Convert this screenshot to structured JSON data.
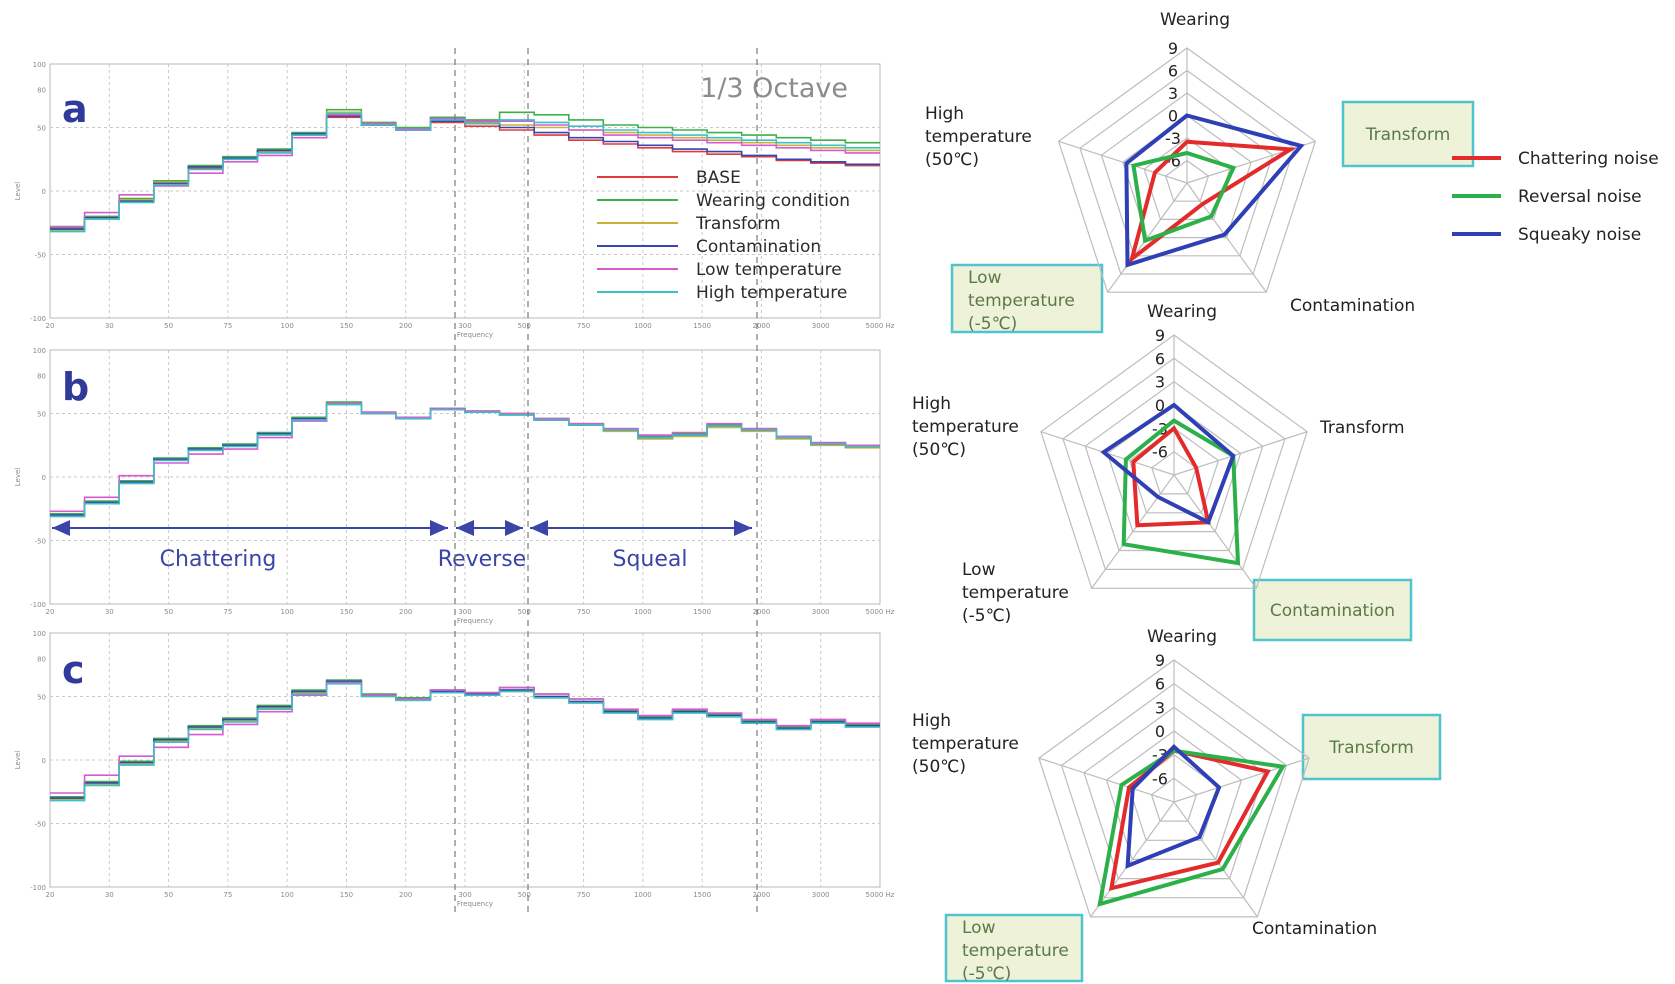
{
  "chart_data": [
    {
      "id": "a",
      "type": "line",
      "panel_label": "a",
      "annotation": "1/3 Octave",
      "x": [
        "20",
        "30",
        "40",
        "50",
        "63",
        "80",
        "100",
        "125",
        "160",
        "200",
        "250",
        "315",
        "400",
        "500",
        "630",
        "800",
        "1000",
        "1250",
        "1600",
        "2000",
        "2500",
        "3150",
        "4000",
        "5000"
      ],
      "x_tick_labels": [
        "20",
        "30",
        "50",
        "75",
        "100",
        "150",
        "200",
        "300",
        "500",
        "750",
        "1000",
        "1500",
        "2000",
        "3000",
        "5000 Hz"
      ],
      "xlabel": "Frequency",
      "ylabel": "Level",
      "y_tick_labels": [
        "100",
        "80",
        "50",
        "0",
        "-50",
        "-100"
      ],
      "ylim": [
        -100,
        100
      ],
      "legend": [
        "BASE",
        "Wearing condition",
        "Transform",
        "Contamination",
        "Low temperature",
        "High temperature"
      ],
      "legend_colors": [
        "#e23a3a",
        "#3db04a",
        "#c9b23a",
        "#3a46b0",
        "#d65ad0",
        "#3cc0c8"
      ],
      "series": [
        {
          "name": "BASE",
          "color": "#e23a3a",
          "values": [
            -30,
            -22,
            -8,
            6,
            18,
            26,
            31,
            44,
            58,
            52,
            48,
            54,
            51,
            48,
            44,
            40,
            37,
            34,
            31,
            29,
            27,
            24,
            22,
            20
          ]
        },
        {
          "name": "Wearing condition",
          "color": "#3db04a",
          "values": [
            -29,
            -20,
            -6,
            8,
            20,
            27,
            33,
            46,
            64,
            54,
            50,
            58,
            56,
            62,
            60,
            56,
            52,
            50,
            48,
            46,
            44,
            42,
            40,
            38
          ]
        },
        {
          "name": "Transform",
          "color": "#c9b23a",
          "values": [
            -31,
            -21,
            -7,
            7,
            19,
            26,
            31,
            45,
            62,
            53,
            49,
            56,
            54,
            52,
            50,
            48,
            46,
            44,
            42,
            40,
            38,
            36,
            34,
            32
          ]
        },
        {
          "name": "Contamination",
          "color": "#3a46b0",
          "values": [
            -30,
            -21,
            -8,
            6,
            19,
            26,
            32,
            45,
            59,
            52,
            48,
            55,
            53,
            50,
            46,
            42,
            39,
            36,
            33,
            31,
            28,
            25,
            23,
            21
          ]
        },
        {
          "name": "Low temperature",
          "color": "#d65ad0",
          "values": [
            -28,
            -17,
            -3,
            4,
            14,
            23,
            28,
            42,
            60,
            53,
            49,
            57,
            55,
            55,
            52,
            48,
            44,
            42,
            40,
            38,
            36,
            34,
            32,
            30
          ]
        },
        {
          "name": "High temperature",
          "color": "#3cc0c8",
          "values": [
            -32,
            -22,
            -9,
            5,
            17,
            25,
            30,
            44,
            61,
            52,
            48,
            56,
            53,
            56,
            54,
            51,
            48,
            46,
            44,
            42,
            40,
            38,
            36,
            34
          ]
        }
      ]
    },
    {
      "id": "b",
      "type": "line",
      "panel_label": "b",
      "x": [
        "20",
        "30",
        "40",
        "50",
        "63",
        "80",
        "100",
        "125",
        "160",
        "200",
        "250",
        "315",
        "400",
        "500",
        "630",
        "800",
        "1000",
        "1250",
        "1600",
        "2000",
        "2500",
        "3150",
        "4000",
        "5000"
      ],
      "x_tick_labels": [
        "20",
        "30",
        "50",
        "75",
        "100",
        "150",
        "200",
        "300",
        "500",
        "750",
        "1000",
        "1500",
        "2000",
        "3000",
        "5000 Hz"
      ],
      "xlabel": "Frequency",
      "ylabel": "Level",
      "y_tick_labels": [
        "100",
        "80",
        "50",
        "0",
        "-50",
        "-100"
      ],
      "ylim": [
        -100,
        100
      ],
      "regions": [
        {
          "label": "Chattering",
          "x_from": "20",
          "x_to": "400"
        },
        {
          "label": "Reverse",
          "x_from": "400",
          "x_to": "500"
        },
        {
          "label": "Squeal",
          "x_from": "500",
          "x_to": "2500"
        }
      ],
      "series": [
        {
          "name": "BASE",
          "color": "#e23a3a",
          "values": [
            -30,
            -20,
            -4,
            14,
            22,
            25,
            34,
            46,
            58,
            50,
            46,
            53,
            51,
            49,
            45,
            41,
            37,
            31,
            33,
            40,
            37,
            31,
            26,
            24
          ]
        },
        {
          "name": "Wearing condition",
          "color": "#3db04a",
          "values": [
            -29,
            -19,
            -3,
            15,
            23,
            26,
            35,
            47,
            59,
            51,
            47,
            54,
            52,
            50,
            46,
            42,
            38,
            32,
            34,
            41,
            38,
            32,
            27,
            25
          ]
        },
        {
          "name": "Transform",
          "color": "#c9b23a",
          "values": [
            -31,
            -20,
            -4,
            14,
            21,
            25,
            34,
            46,
            57,
            50,
            46,
            53,
            51,
            49,
            45,
            41,
            36,
            30,
            32,
            39,
            36,
            30,
            25,
            23
          ]
        },
        {
          "name": "Contamination",
          "color": "#3a46b0",
          "values": [
            -30,
            -20,
            -4,
            14,
            22,
            25,
            34,
            46,
            58,
            50,
            46,
            53,
            51,
            49,
            45,
            41,
            37,
            31,
            33,
            40,
            37,
            31,
            26,
            24
          ]
        },
        {
          "name": "Low temperature",
          "color": "#d65ad0",
          "values": [
            -27,
            -16,
            1,
            11,
            18,
            22,
            31,
            44,
            58,
            51,
            47,
            54,
            52,
            50,
            46,
            42,
            38,
            33,
            35,
            42,
            38,
            32,
            27,
            25
          ]
        },
        {
          "name": "High temperature",
          "color": "#3cc0c8",
          "values": [
            -31,
            -21,
            -5,
            13,
            21,
            24,
            33,
            45,
            57,
            50,
            46,
            53,
            51,
            49,
            45,
            41,
            37,
            31,
            33,
            40,
            37,
            31,
            26,
            24
          ]
        }
      ]
    },
    {
      "id": "c",
      "type": "line",
      "panel_label": "c",
      "x": [
        "20",
        "30",
        "40",
        "50",
        "63",
        "80",
        "100",
        "125",
        "160",
        "200",
        "250",
        "315",
        "400",
        "500",
        "630",
        "800",
        "1000",
        "1250",
        "1600",
        "2000",
        "2500",
        "3150",
        "4000",
        "5000"
      ],
      "x_tick_labels": [
        "20",
        "30",
        "50",
        "75",
        "100",
        "150",
        "200",
        "300",
        "500",
        "750",
        "1000",
        "1500",
        "2000",
        "3000",
        "5000 Hz"
      ],
      "xlabel": "Frequency",
      "ylabel": "Level",
      "y_tick_labels": [
        "100",
        "80",
        "50",
        "0",
        "-50",
        "-100"
      ],
      "ylim": [
        -100,
        100
      ],
      "series": [
        {
          "name": "BASE",
          "color": "#e23a3a",
          "values": [
            -30,
            -18,
            -2,
            16,
            26,
            32,
            42,
            54,
            62,
            51,
            48,
            54,
            52,
            55,
            50,
            46,
            38,
            33,
            38,
            35,
            30,
            25,
            30,
            27
          ]
        },
        {
          "name": "Wearing condition",
          "color": "#3db04a",
          "values": [
            -29,
            -17,
            -1,
            17,
            27,
            33,
            43,
            55,
            63,
            52,
            49,
            55,
            53,
            57,
            52,
            48,
            39,
            34,
            39,
            36,
            31,
            26,
            31,
            28
          ]
        },
        {
          "name": "Transform",
          "color": "#c9b23a",
          "values": [
            -31,
            -19,
            -3,
            15,
            25,
            31,
            41,
            53,
            61,
            50,
            47,
            53,
            51,
            54,
            49,
            45,
            37,
            32,
            37,
            34,
            29,
            24,
            29,
            26
          ]
        },
        {
          "name": "Contamination",
          "color": "#3a46b0",
          "values": [
            -30,
            -18,
            -2,
            16,
            26,
            32,
            42,
            54,
            62,
            51,
            48,
            54,
            52,
            55,
            50,
            46,
            38,
            33,
            38,
            35,
            30,
            25,
            30,
            27
          ]
        },
        {
          "name": "Low temperature",
          "color": "#d65ad0",
          "values": [
            -26,
            -12,
            3,
            10,
            20,
            28,
            38,
            51,
            61,
            51,
            48,
            55,
            53,
            57,
            52,
            48,
            40,
            35,
            40,
            37,
            32,
            27,
            32,
            29
          ]
        },
        {
          "name": "High temperature",
          "color": "#3cc0c8",
          "values": [
            -32,
            -20,
            -4,
            14,
            24,
            30,
            40,
            52,
            60,
            50,
            47,
            53,
            51,
            54,
            49,
            45,
            37,
            32,
            37,
            34,
            29,
            24,
            29,
            26
          ]
        }
      ]
    },
    {
      "id": "radar-a",
      "type": "radar",
      "axes": [
        "Wearing",
        "Transform",
        "Contamination",
        "Low temperature (-5℃)",
        "High temperature (50℃)"
      ],
      "axis_labels": [
        [
          "Wearing"
        ],
        [
          "Transform"
        ],
        [
          "Contamination"
        ],
        [
          "Low",
          "temperature",
          "(-5℃)"
        ],
        [
          "High",
          "temperature",
          "(50℃)"
        ]
      ],
      "highlighted_axes": [
        1,
        3
      ],
      "r_ticks": [
        "9",
        "6",
        "3",
        "0",
        "-3",
        "-6"
      ],
      "rlim": [
        -9,
        9
      ],
      "series": [
        {
          "name": "Chattering noise",
          "color": "#e32b2b",
          "values": [
            -3.5,
            5.5,
            -5.5,
            3.5,
            -4.5
          ]
        },
        {
          "name": "Reversal noise",
          "color": "#2db04a",
          "values": [
            -5,
            -2.5,
            -3.5,
            0.5,
            -1.5
          ]
        },
        {
          "name": "Squeaky noise",
          "color": "#2f3fb4",
          "values": [
            0,
            7,
            -0.5,
            4.5,
            -0.5
          ]
        }
      ]
    },
    {
      "id": "radar-b",
      "type": "radar",
      "axes": [
        "Wearing",
        "Transform",
        "Contamination",
        "Low temperature (-5℃)",
        "High temperature (50℃)"
      ],
      "axis_labels": [
        [
          "Wearing"
        ],
        [
          "Transform"
        ],
        [
          "Contamination"
        ],
        [
          "Low",
          "temperature",
          "(-5℃)"
        ],
        [
          "High",
          "temperature",
          "(50℃)"
        ]
      ],
      "highlighted_axes": [
        2
      ],
      "r_ticks": [
        "9",
        "6",
        "3",
        "0",
        "-3",
        "-6"
      ],
      "rlim": [
        -9,
        9
      ],
      "series": [
        {
          "name": "Chattering noise",
          "color": "#e32b2b",
          "values": [
            -3,
            -6,
            -1.5,
            -1,
            -3.5
          ]
        },
        {
          "name": "Reversal noise",
          "color": "#2db04a",
          "values": [
            -2,
            -1,
            5,
            2,
            -2.5
          ]
        },
        {
          "name": "Squeaky noise",
          "color": "#2f3fb4",
          "values": [
            0,
            -1,
            -1.5,
            -5.5,
            0.5
          ]
        }
      ]
    },
    {
      "id": "radar-c",
      "type": "radar",
      "axes": [
        "Wearing",
        "Transform",
        "Contamination",
        "Low temperature (-5℃)",
        "High temperature (50℃)"
      ],
      "axis_labels": [
        [
          "Wearing"
        ],
        [
          "Transform"
        ],
        [
          "Contamination"
        ],
        [
          "Low",
          "temperature",
          "(-5℃)"
        ],
        [
          "High",
          "temperature",
          "(50℃)"
        ]
      ],
      "highlighted_axes": [
        1,
        3
      ],
      "r_ticks": [
        "9",
        "6",
        "3",
        "0",
        "-3",
        "-6"
      ],
      "rlim": [
        -9,
        9
      ],
      "series": [
        {
          "name": "Chattering noise",
          "color": "#e32b2b",
          "values": [
            -2.5,
            3.5,
            0.5,
            4.5,
            -3
          ]
        },
        {
          "name": "Reversal noise",
          "color": "#2db04a",
          "values": [
            -2.5,
            5.5,
            1.5,
            7,
            -2
          ]
        },
        {
          "name": "Squeaky noise",
          "color": "#2f3fb4",
          "values": [
            -2,
            -3,
            -3.5,
            1,
            -3.5
          ]
        }
      ]
    }
  ],
  "radar_legend": [
    {
      "label": "Chattering noise",
      "color": "#e32b2b"
    },
    {
      "label": "Reversal noise",
      "color": "#2db04a"
    },
    {
      "label": "Squeaky noise",
      "color": "#2f3fb4"
    }
  ]
}
